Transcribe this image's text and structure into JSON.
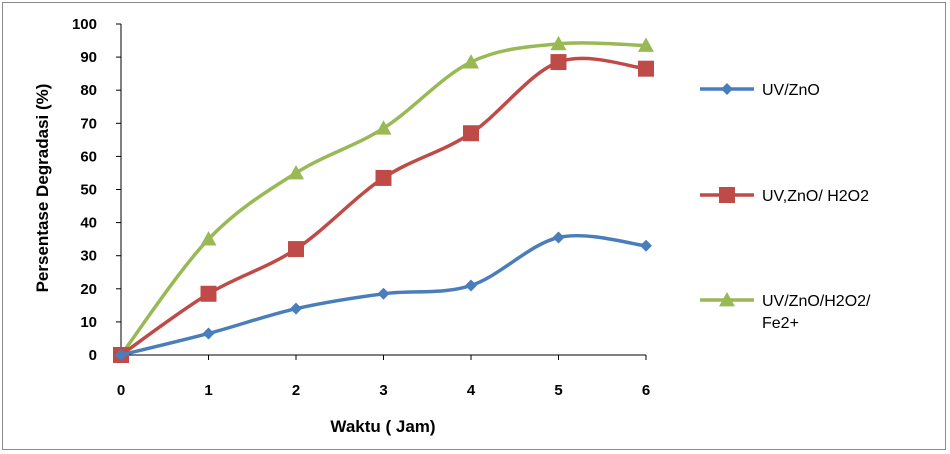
{
  "chart_data": {
    "type": "line",
    "title": "",
    "xlabel": "Waktu ( Jam)",
    "ylabel": "Persentase Degradasi (%)",
    "x": [
      0,
      1,
      2,
      3,
      4,
      5,
      6
    ],
    "x_tick_labels": [
      "0",
      "1",
      "2",
      "3",
      "4",
      "5",
      "6"
    ],
    "y_tick_labels": [
      "0",
      "10",
      "20",
      "30",
      "40",
      "50",
      "60",
      "70",
      "80",
      "90",
      "100"
    ],
    "ylim": [
      0,
      100
    ],
    "xlim": [
      0,
      6
    ],
    "grid": false,
    "legend_position": "right",
    "smooth": true,
    "series": [
      {
        "name": "UV/ZnO",
        "name_lines": [
          "UV/ZnO"
        ],
        "color": "#4a7ebb",
        "marker": "diamond",
        "values": [
          0,
          6.5,
          14,
          18.5,
          21,
          35.5,
          33
        ]
      },
      {
        "name": "UV,ZnO/ H2O2",
        "name_lines": [
          "UV,ZnO/  H2O2"
        ],
        "color": "#be4b48",
        "marker": "square",
        "values": [
          0,
          18.5,
          32,
          53.5,
          67,
          88.5,
          86.5
        ]
      },
      {
        "name": "UV/ZnO/H2O2/ Fe2+",
        "name_lines": [
          "UV/ZnO/H2O2/",
          "Fe2+"
        ],
        "color": "#98b954",
        "marker": "triangle",
        "values": [
          0,
          35,
          55,
          68.5,
          88.5,
          94,
          93.5
        ]
      }
    ]
  }
}
